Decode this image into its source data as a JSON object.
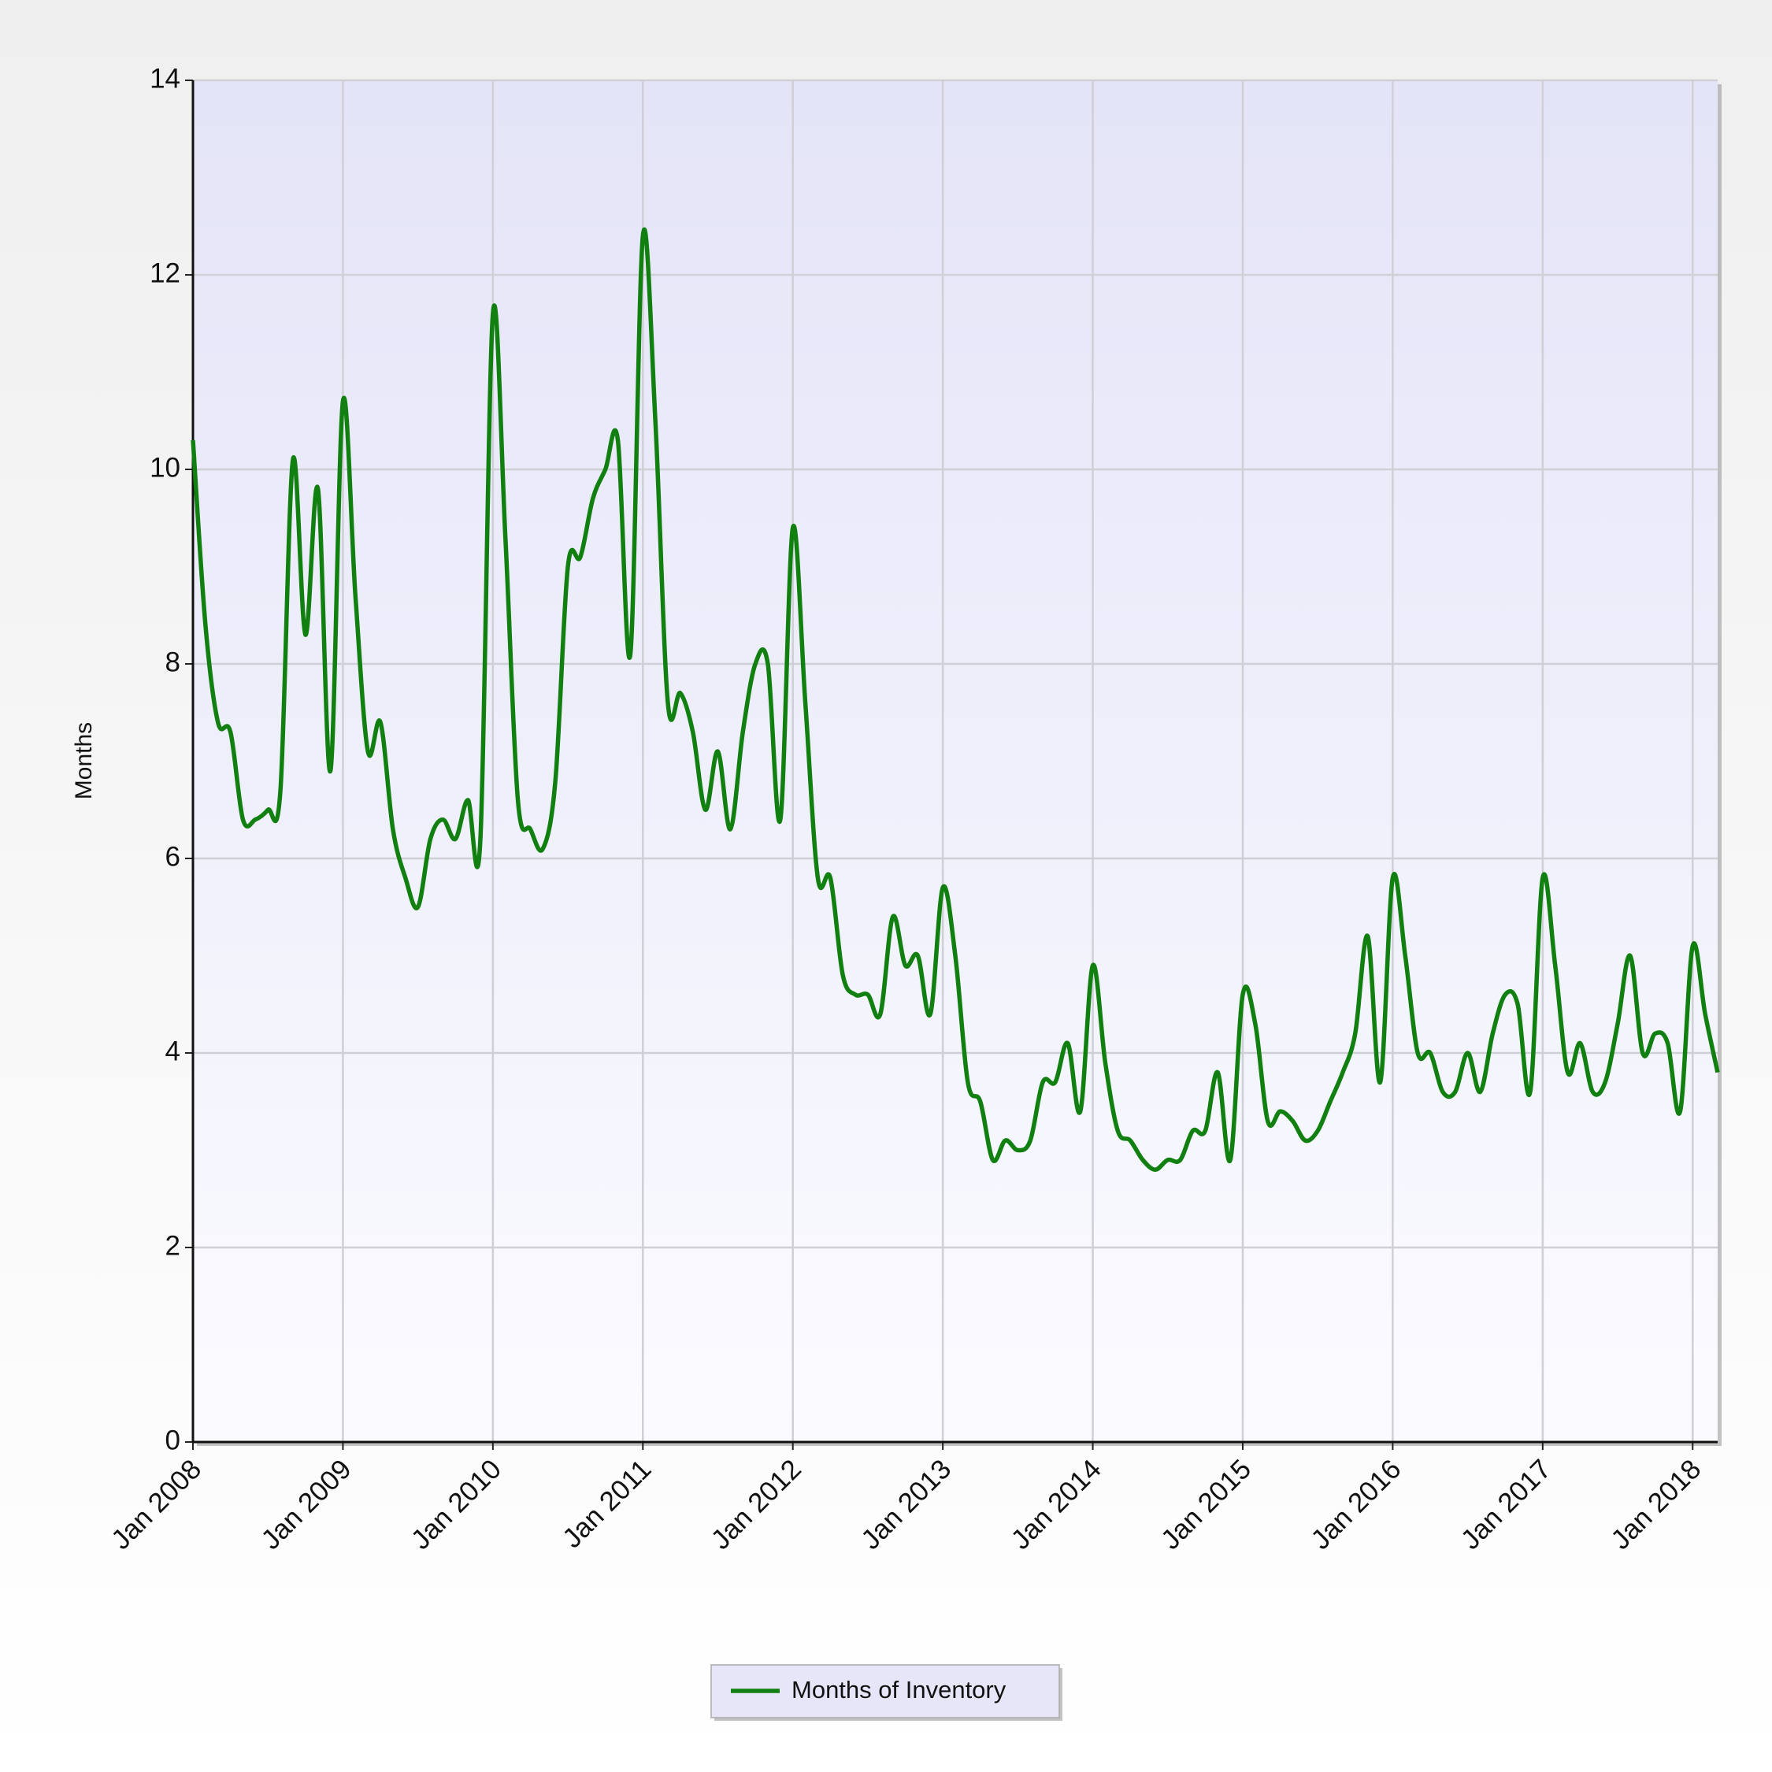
{
  "chart_data": {
    "type": "line",
    "y_label": "Months",
    "x": [
      "2008-01",
      "2008-02",
      "2008-03",
      "2008-04",
      "2008-05",
      "2008-06",
      "2008-07",
      "2008-08",
      "2008-09",
      "2008-10",
      "2008-11",
      "2008-12",
      "2009-01",
      "2009-02",
      "2009-03",
      "2009-04",
      "2009-05",
      "2009-06",
      "2009-07",
      "2009-08",
      "2009-09",
      "2009-10",
      "2009-11",
      "2009-12",
      "2010-01",
      "2010-02",
      "2010-03",
      "2010-04",
      "2010-05",
      "2010-06",
      "2010-07",
      "2010-08",
      "2010-09",
      "2010-10",
      "2010-11",
      "2010-12",
      "2011-01",
      "2011-02",
      "2011-03",
      "2011-04",
      "2011-05",
      "2011-06",
      "2011-07",
      "2011-08",
      "2011-09",
      "2011-10",
      "2011-11",
      "2011-12",
      "2012-01",
      "2012-02",
      "2012-03",
      "2012-04",
      "2012-05",
      "2012-06",
      "2012-07",
      "2012-08",
      "2012-09",
      "2012-10",
      "2012-11",
      "2012-12",
      "2013-01",
      "2013-02",
      "2013-03",
      "2013-04",
      "2013-05",
      "2013-06",
      "2013-07",
      "2013-08",
      "2013-09",
      "2013-10",
      "2013-11",
      "2013-12",
      "2014-01",
      "2014-02",
      "2014-03",
      "2014-04",
      "2014-05",
      "2014-06",
      "2014-07",
      "2014-08",
      "2014-09",
      "2014-10",
      "2014-11",
      "2014-12",
      "2015-01",
      "2015-02",
      "2015-03",
      "2015-04",
      "2015-05",
      "2015-06",
      "2015-07",
      "2015-08",
      "2015-09",
      "2015-10",
      "2015-11",
      "2015-12",
      "2016-01",
      "2016-02",
      "2016-03",
      "2016-04",
      "2016-05",
      "2016-06",
      "2016-07",
      "2016-08",
      "2016-09",
      "2016-10",
      "2016-11",
      "2016-12",
      "2017-01",
      "2017-02",
      "2017-03",
      "2017-04",
      "2017-05",
      "2017-06",
      "2017-07",
      "2017-08",
      "2017-09",
      "2017-10",
      "2017-11",
      "2017-12",
      "2018-01",
      "2018-02",
      "2018-03"
    ],
    "series": [
      {
        "name": "Months of Inventory",
        "color": "#118011",
        "values": [
          10.3,
          8.4,
          7.4,
          7.3,
          6.4,
          6.4,
          6.5,
          6.7,
          10.1,
          8.3,
          9.8,
          6.9,
          10.7,
          8.7,
          7.1,
          7.4,
          6.3,
          5.8,
          5.5,
          6.2,
          6.4,
          6.2,
          6.6,
          6.2,
          11.6,
          9.3,
          6.6,
          6.3,
          6.1,
          6.8,
          9.0,
          9.1,
          9.7,
          10.0,
          10.3,
          8.1,
          12.4,
          10.5,
          7.6,
          7.7,
          7.3,
          6.5,
          7.1,
          6.3,
          7.3,
          8.0,
          8.0,
          6.4,
          9.4,
          7.6,
          5.8,
          5.8,
          4.8,
          4.6,
          4.6,
          4.4,
          5.4,
          4.9,
          5.0,
          4.4,
          5.7,
          5.0,
          3.7,
          3.5,
          2.9,
          3.1,
          3.0,
          3.1,
          3.7,
          3.7,
          4.1,
          3.4,
          4.9,
          3.9,
          3.2,
          3.1,
          2.9,
          2.8,
          2.9,
          2.9,
          3.2,
          3.2,
          3.8,
          2.9,
          4.6,
          4.3,
          3.3,
          3.4,
          3.3,
          3.1,
          3.2,
          3.5,
          3.8,
          4.2,
          5.2,
          3.7,
          5.8,
          5.0,
          4.0,
          4.0,
          3.6,
          3.6,
          4.0,
          3.6,
          4.2,
          4.6,
          4.5,
          3.6,
          5.8,
          4.9,
          3.8,
          4.1,
          3.6,
          3.7,
          4.3,
          5.0,
          4.0,
          4.2,
          4.1,
          3.4,
          5.1,
          4.4,
          3.8
        ]
      }
    ],
    "xlim": [
      "2008-01",
      "2018-03"
    ],
    "xticks": [
      {
        "value": "2008-01",
        "label": "Jan 2008"
      },
      {
        "value": "2009-01",
        "label": "Jan 2009"
      },
      {
        "value": "2010-01",
        "label": "Jan 2010"
      },
      {
        "value": "2011-01",
        "label": "Jan 2011"
      },
      {
        "value": "2012-01",
        "label": "Jan 2012"
      },
      {
        "value": "2013-01",
        "label": "Jan 2013"
      },
      {
        "value": "2014-01",
        "label": "Jan 2014"
      },
      {
        "value": "2015-01",
        "label": "Jan 2015"
      },
      {
        "value": "2016-01",
        "label": "Jan 2016"
      },
      {
        "value": "2017-01",
        "label": "Jan 2017"
      },
      {
        "value": "2018-01",
        "label": "Jan 2018"
      }
    ],
    "ylim": [
      0,
      14
    ],
    "yticks": [
      0,
      2,
      4,
      6,
      8,
      10,
      12,
      14
    ],
    "grid": true,
    "legend": "bottom"
  }
}
